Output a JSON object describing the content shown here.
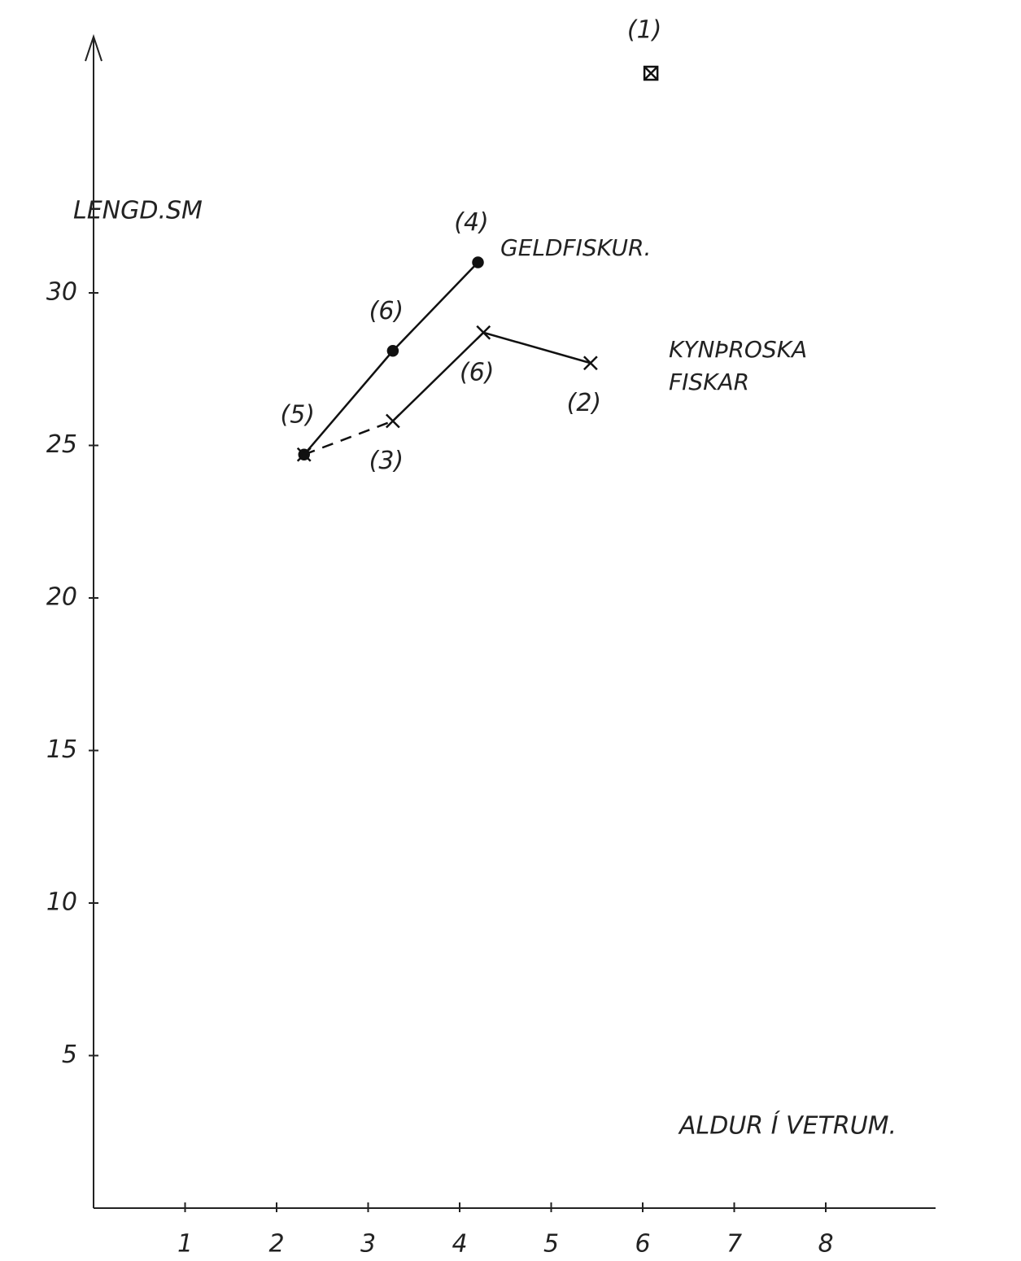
{
  "chart_data": {
    "type": "line",
    "xlabel": "ALDUR Í VETRUM.",
    "ylabel": "LENGD.SM",
    "xlim": [
      0,
      9.2
    ],
    "ylim": [
      0,
      38.4
    ],
    "xticks": [
      1,
      2,
      3,
      4,
      5,
      6,
      7,
      8
    ],
    "yticks": [
      5,
      10,
      15,
      20,
      25,
      30
    ],
    "series": [
      {
        "name": "GELDFISKUR.",
        "color": "#111111",
        "marker": "dot",
        "x": [
          2.3,
          3.27,
          4.2
        ],
        "values": [
          24.7,
          28.1,
          31.0
        ],
        "point_labels": [
          "(5)",
          "(6)",
          "(4)"
        ]
      },
      {
        "name": "KYNÞROSKA FISKAR",
        "color": "#111111",
        "marker": "x",
        "dashed_segments": [
          0
        ],
        "x": [
          2.3,
          3.27,
          4.26,
          5.43
        ],
        "values": [
          24.7,
          25.8,
          28.7,
          27.7
        ],
        "point_labels": [
          null,
          "(3)",
          "(6)",
          "(2)"
        ]
      }
    ],
    "extra_points": [
      {
        "x": 6.09,
        "y": 37.2,
        "label": "(1)",
        "marker": "box-x"
      }
    ]
  }
}
